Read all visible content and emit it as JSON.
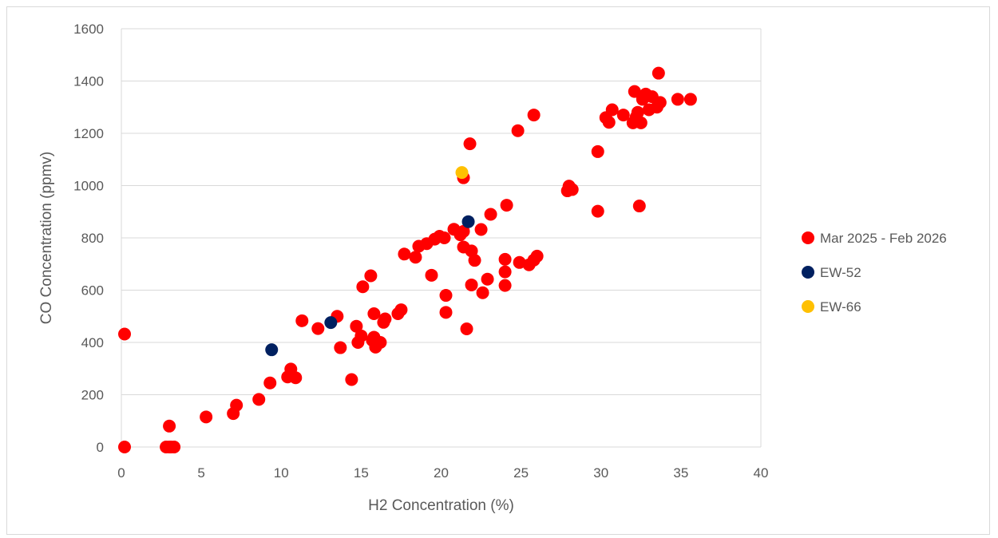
{
  "chart_data": {
    "type": "scatter",
    "title": "",
    "xlabel": "H2 Concentration (%)",
    "ylabel": "CO Concentration (ppmv)",
    "xlim": [
      0,
      40
    ],
    "ylim": [
      0,
      1600
    ],
    "xticks": [
      0,
      5,
      10,
      15,
      20,
      25,
      30,
      35,
      40
    ],
    "yticks": [
      0,
      200,
      400,
      600,
      800,
      1000,
      1200,
      1400,
      1600
    ],
    "grid": "horizontal",
    "legend_position": "right",
    "series": [
      {
        "name": "Mar 2025 - Feb 2026",
        "color": "#ff0000",
        "points": [
          [
            0.2,
            432
          ],
          [
            0.2,
            0
          ],
          [
            2.8,
            0
          ],
          [
            3.0,
            0
          ],
          [
            3.1,
            0
          ],
          [
            3.3,
            0
          ],
          [
            3.0,
            80
          ],
          [
            5.3,
            115
          ],
          [
            7.0,
            128
          ],
          [
            7.2,
            160
          ],
          [
            8.6,
            182
          ],
          [
            9.3,
            245
          ],
          [
            10.4,
            268
          ],
          [
            10.6,
            298
          ],
          [
            10.9,
            265
          ],
          [
            11.3,
            483
          ],
          [
            12.3,
            453
          ],
          [
            13.5,
            500
          ],
          [
            13.7,
            380
          ],
          [
            14.4,
            258
          ],
          [
            14.7,
            462
          ],
          [
            14.8,
            400
          ],
          [
            15.0,
            425
          ],
          [
            15.1,
            613
          ],
          [
            15.6,
            655
          ],
          [
            15.7,
            408
          ],
          [
            15.8,
            510
          ],
          [
            15.8,
            420
          ],
          [
            15.9,
            382
          ],
          [
            16.2,
            400
          ],
          [
            16.4,
            477
          ],
          [
            16.5,
            490
          ],
          [
            17.3,
            510
          ],
          [
            17.5,
            525
          ],
          [
            17.7,
            738
          ],
          [
            18.4,
            726
          ],
          [
            18.6,
            768
          ],
          [
            19.1,
            778
          ],
          [
            19.4,
            657
          ],
          [
            19.6,
            795
          ],
          [
            19.9,
            806
          ],
          [
            20.2,
            800
          ],
          [
            20.3,
            580
          ],
          [
            20.3,
            515
          ],
          [
            20.8,
            833
          ],
          [
            21.2,
            812
          ],
          [
            21.4,
            825
          ],
          [
            21.4,
            765
          ],
          [
            21.4,
            1030
          ],
          [
            21.6,
            452
          ],
          [
            21.8,
            1160
          ],
          [
            21.9,
            620
          ],
          [
            21.9,
            750
          ],
          [
            22.1,
            714
          ],
          [
            22.5,
            832
          ],
          [
            22.6,
            590
          ],
          [
            22.9,
            642
          ],
          [
            23.1,
            890
          ],
          [
            24.0,
            718
          ],
          [
            24.0,
            670
          ],
          [
            24.0,
            618
          ],
          [
            24.1,
            925
          ],
          [
            24.8,
            1210
          ],
          [
            24.9,
            706
          ],
          [
            25.5,
            697
          ],
          [
            25.8,
            1270
          ],
          [
            25.8,
            715
          ],
          [
            26.0,
            730
          ],
          [
            27.9,
            980
          ],
          [
            28.0,
            998
          ],
          [
            28.2,
            985
          ],
          [
            29.8,
            1130
          ],
          [
            29.8,
            902
          ],
          [
            30.3,
            1260
          ],
          [
            30.5,
            1242
          ],
          [
            30.7,
            1290
          ],
          [
            31.4,
            1270
          ],
          [
            32.0,
            1240
          ],
          [
            32.1,
            1360
          ],
          [
            32.2,
            1262
          ],
          [
            32.3,
            1280
          ],
          [
            32.4,
            922
          ],
          [
            32.5,
            1240
          ],
          [
            32.6,
            1330
          ],
          [
            32.8,
            1350
          ],
          [
            33.0,
            1290
          ],
          [
            33.2,
            1340
          ],
          [
            33.5,
            1300
          ],
          [
            33.6,
            1430
          ],
          [
            33.7,
            1318
          ],
          [
            34.8,
            1330
          ],
          [
            35.6,
            1330
          ]
        ]
      },
      {
        "name": "EW-52",
        "color": "#002060",
        "points": [
          [
            9.4,
            372
          ],
          [
            13.1,
            476
          ],
          [
            21.7,
            862
          ]
        ]
      },
      {
        "name": "EW-66",
        "color": "#ffc000",
        "points": [
          [
            21.3,
            1050
          ]
        ]
      }
    ]
  }
}
